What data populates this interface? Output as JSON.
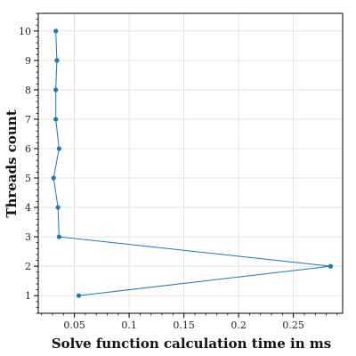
{
  "chart_data": {
    "type": "line",
    "xlabel": "Solve function calculation time in ms",
    "ylabel": "Threads count",
    "xlim": [
      0.017,
      0.295
    ],
    "ylim": [
      0.4,
      10.6
    ],
    "xticks": [
      0.05,
      0.1,
      0.15,
      0.2,
      0.25
    ],
    "xtick_labels": [
      "0.05",
      "0.1",
      "0.15",
      "0.2",
      "0.25"
    ],
    "yticks": [
      1,
      2,
      3,
      4,
      5,
      6,
      7,
      8,
      9,
      10
    ],
    "ytick_labels": [
      "1",
      "2",
      "3",
      "4",
      "5",
      "6",
      "7",
      "8",
      "9",
      "10"
    ],
    "grid": true,
    "series": [
      {
        "color": "#1f77b4",
        "marker": "circle",
        "points": [
          {
            "x": 0.054,
            "y": 1
          },
          {
            "x": 0.284,
            "y": 2
          },
          {
            "x": 0.036,
            "y": 3
          },
          {
            "x": 0.035,
            "y": 4
          },
          {
            "x": 0.031,
            "y": 5
          },
          {
            "x": 0.036,
            "y": 6
          },
          {
            "x": 0.033,
            "y": 7
          },
          {
            "x": 0.033,
            "y": 8
          },
          {
            "x": 0.034,
            "y": 9
          },
          {
            "x": 0.033,
            "y": 10
          }
        ]
      }
    ],
    "colors": {
      "grid": "#dddddd",
      "axis": "#000000"
    }
  }
}
